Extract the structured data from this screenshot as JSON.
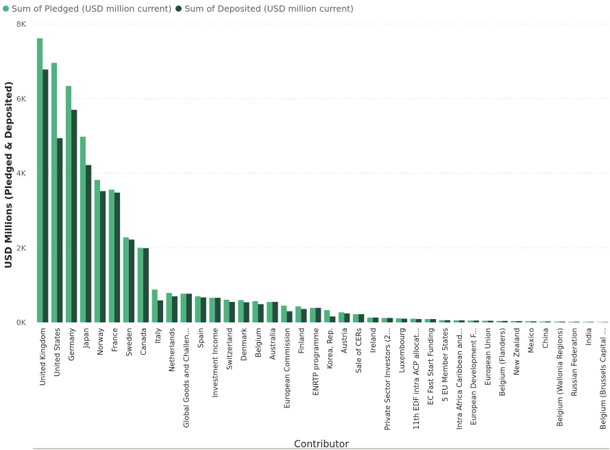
{
  "colors": {
    "pledged": "#4fb37e",
    "deposited": "#234d3d",
    "grid": "#d9d9d9",
    "axis_text": "#605e5c"
  },
  "chart_data": {
    "type": "bar",
    "title": "",
    "xlabel": "Contributor",
    "ylabel": "USD Millions (Pledged & Deposited)",
    "ylim": [
      0,
      8000
    ],
    "yticks": [
      0,
      2000,
      4000,
      6000,
      8000
    ],
    "ytick_labels": [
      "0K",
      "2K",
      "4K",
      "6K",
      "8K"
    ],
    "grid": true,
    "legend_position": "top-left",
    "categories": [
      "United Kingdom",
      "United States",
      "Germany",
      "Japan",
      "Norway",
      "France",
      "Sweden",
      "Canada",
      "Italy",
      "Netherlands",
      "Global Goods and Challen...",
      "Spain",
      "Investment Income",
      "Switzerland",
      "Denmark",
      "Belgium",
      "Australia",
      "European Commission",
      "Finland",
      "ENRTP programme",
      "Korea, Rep.",
      "Austria",
      "Sale of CERs",
      "Ireland",
      "Private Sector Investors (2...",
      "Luxembourg",
      "11th EDF intra ACP allocat...",
      "EC Fast Start Funding",
      "5 EU Member States",
      "Intra Africa Caribbean and...",
      "European Development F...",
      "European Union",
      "Belgium (Flanders)",
      "New Zealand",
      "Mexico",
      "China",
      "Belgium (Wallonia Regions)",
      "Russian Federation",
      "India",
      "Belgium (Brussels Capital ..."
    ],
    "series": [
      {
        "name": "Sum of Pledged (USD million current)",
        "values": [
          7620,
          6960,
          6340,
          4980,
          3820,
          3560,
          2280,
          2000,
          880,
          790,
          770,
          700,
          660,
          610,
          600,
          570,
          550,
          450,
          430,
          390,
          330,
          270,
          220,
          130,
          120,
          110,
          100,
          90,
          60,
          55,
          50,
          45,
          40,
          35,
          30,
          25,
          22,
          18,
          14,
          10
        ]
      },
      {
        "name": "Sum of Deposited (USD million current)",
        "values": [
          6780,
          4940,
          5700,
          4220,
          3520,
          3480,
          2220,
          1990,
          590,
          700,
          770,
          670,
          660,
          550,
          540,
          490,
          550,
          300,
          360,
          390,
          160,
          240,
          220,
          130,
          120,
          100,
          90,
          90,
          60,
          55,
          50,
          45,
          40,
          35,
          30,
          25,
          22,
          18,
          14,
          10
        ]
      }
    ]
  }
}
